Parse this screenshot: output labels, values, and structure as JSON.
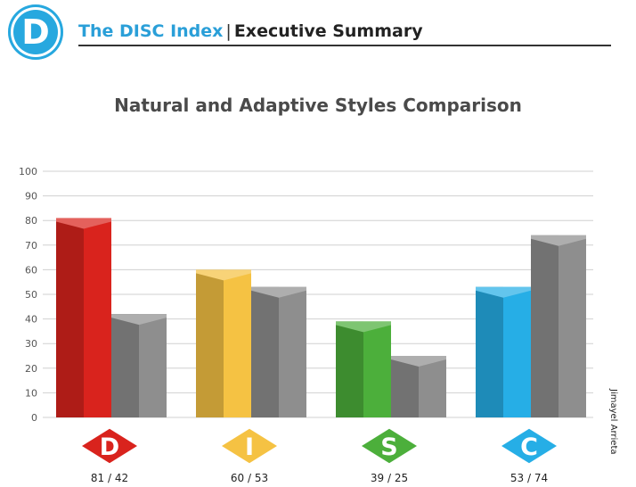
{
  "header": {
    "logo_letter": "D",
    "brand": "The DISC Index",
    "separator": "|",
    "subtitle": "Executive Summary"
  },
  "credit": "Jimayel Arrieta",
  "chart_data": {
    "type": "bar",
    "title": "Natural and Adaptive Styles Comparison",
    "xlabel": "",
    "ylabel": "",
    "ylim": [
      0,
      100
    ],
    "yticks": [
      0,
      10,
      20,
      30,
      40,
      50,
      60,
      70,
      80,
      90,
      100
    ],
    "grid": true,
    "categories": [
      "D",
      "I",
      "S",
      "C"
    ],
    "category_colors": [
      "#d9231d",
      "#f5c243",
      "#4caf3b",
      "#26aee6"
    ],
    "series": [
      {
        "values": [
          81,
          60,
          39,
          53
        ]
      },
      {
        "values": [
          42,
          53,
          25,
          74
        ]
      }
    ],
    "second_series_color": "#8e8e8e",
    "value_labels": [
      "81 / 42",
      "60 / 53",
      "39 / 25",
      "53 / 74"
    ]
  }
}
